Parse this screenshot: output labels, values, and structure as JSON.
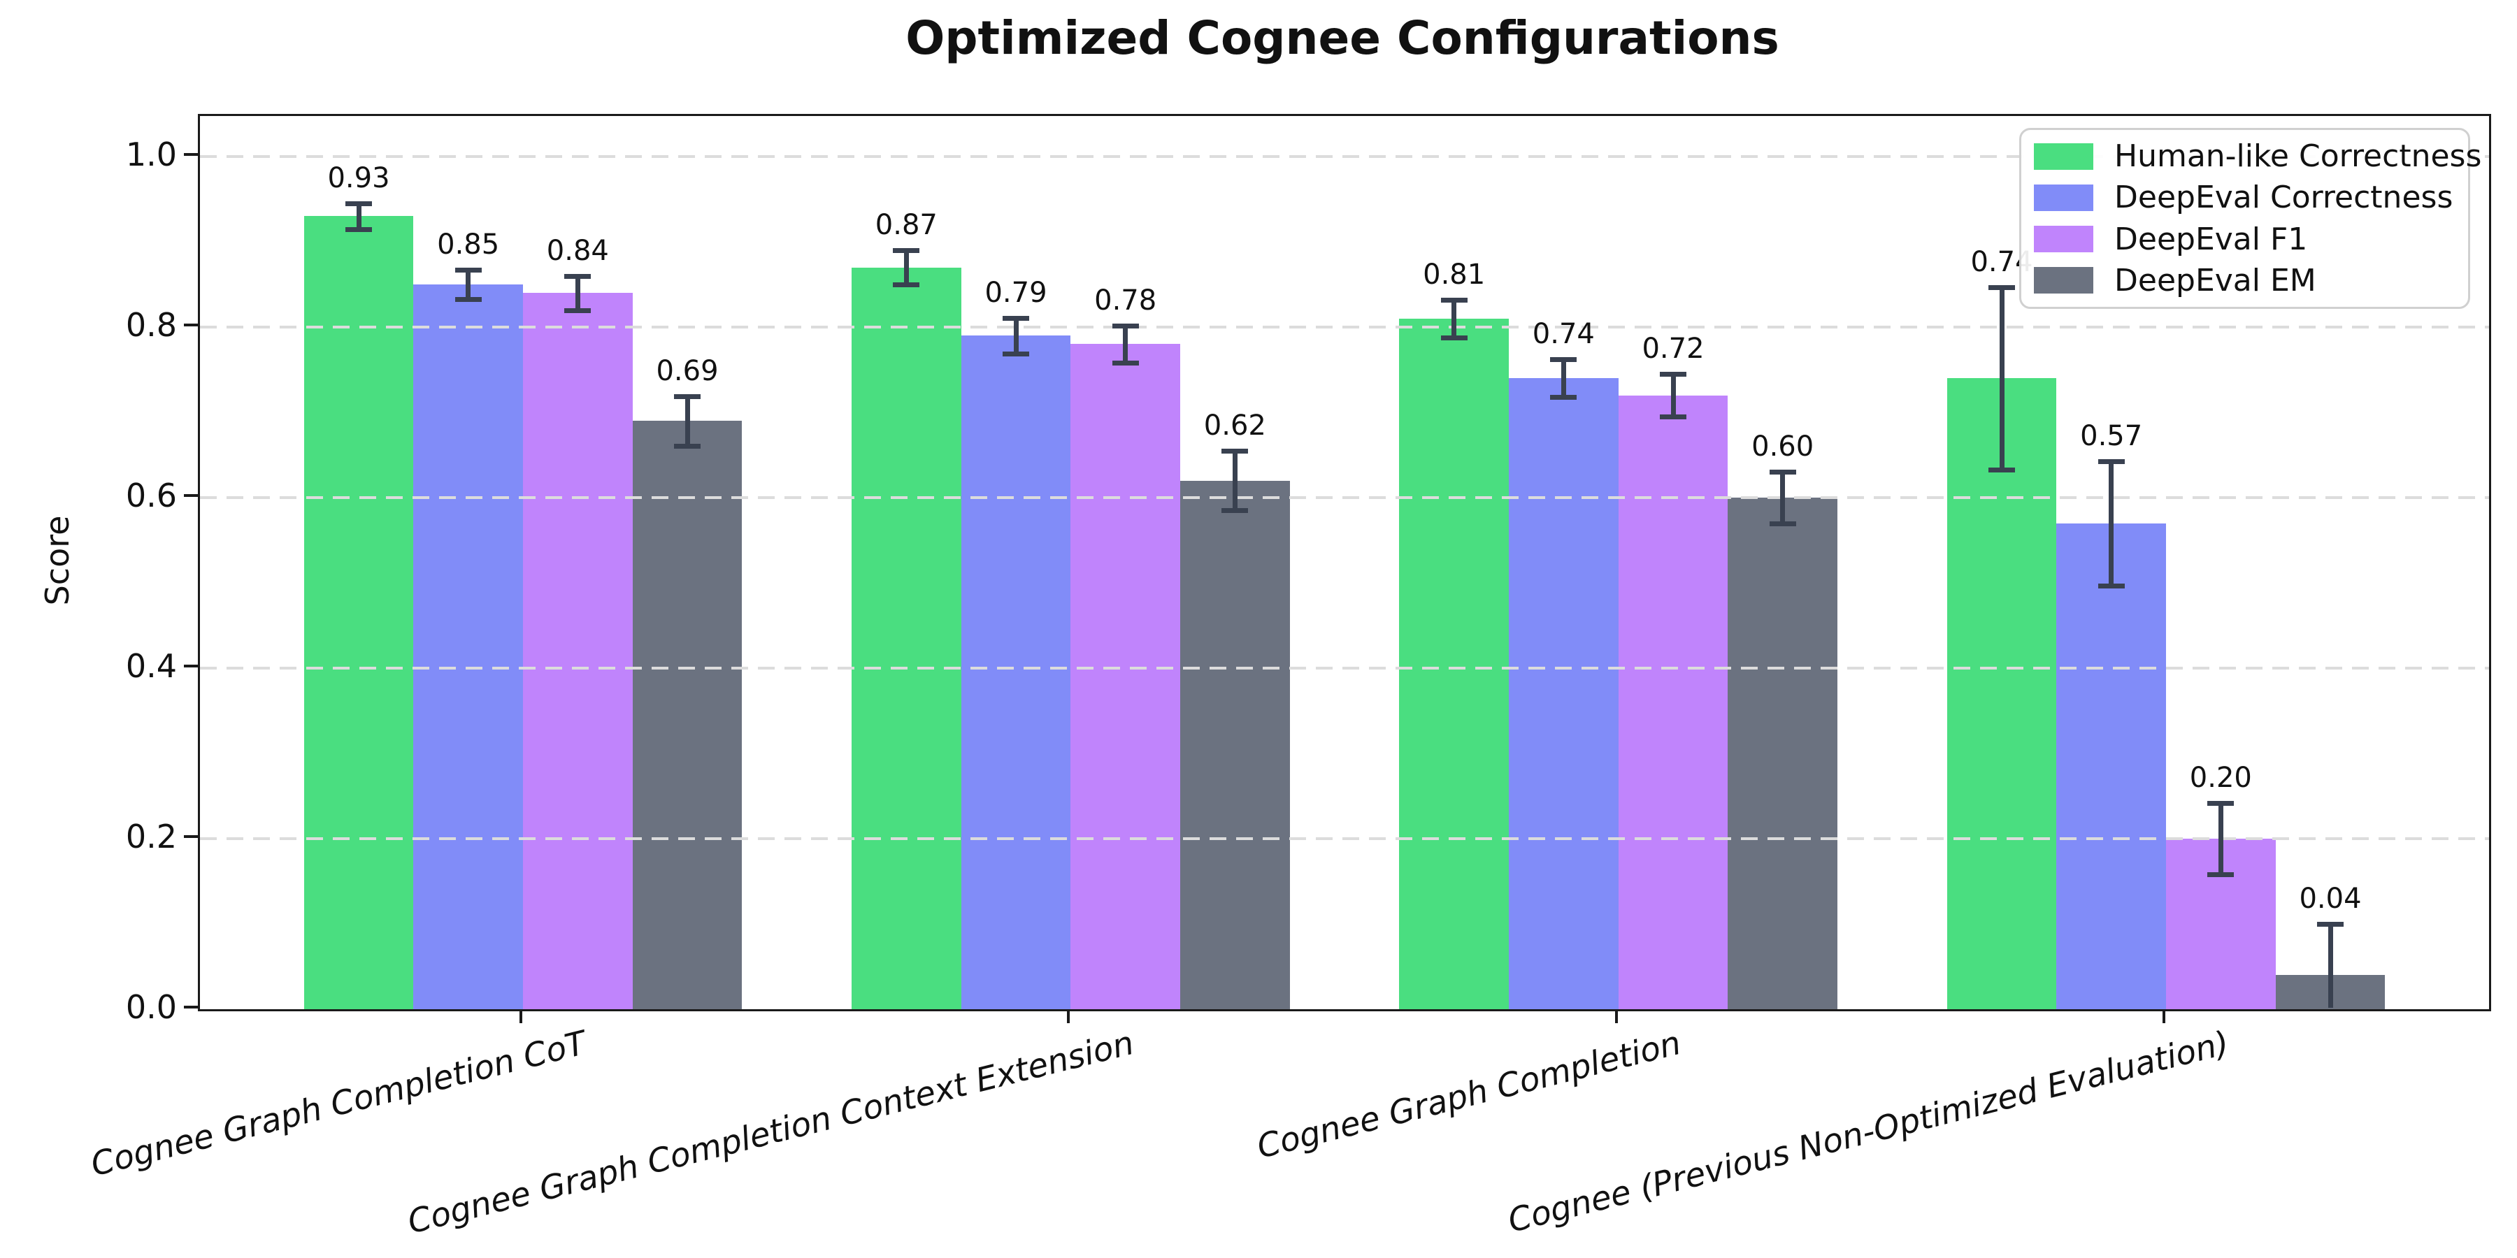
{
  "chart_data": {
    "type": "bar",
    "title": "Optimized Cognee Configurations",
    "ylabel": "Score",
    "xlabel": "",
    "categories": [
      "Cognee Graph Completion CoT",
      "Cognee Graph Completion Context Extension",
      "Cognee Graph Completion",
      "Cognee (Previous Non-Optimized Evaluation)"
    ],
    "series": [
      {
        "name": "Human-like Correctness",
        "color": "#4ade80",
        "values": [
          0.93,
          0.87,
          0.81,
          0.74
        ],
        "errors": [
          0.015,
          0.02,
          0.022,
          0.107
        ],
        "labels": [
          "0.93",
          "0.87",
          "0.81",
          "0.74"
        ]
      },
      {
        "name": "DeepEval Correctness",
        "color": "#818cf8",
        "values": [
          0.85,
          0.79,
          0.74,
          0.57
        ],
        "errors": [
          0.017,
          0.021,
          0.022,
          0.073
        ],
        "labels": [
          "0.85",
          "0.79",
          "0.74",
          "0.57"
        ]
      },
      {
        "name": "DeepEval F1",
        "color": "#c084fc",
        "values": [
          0.84,
          0.78,
          0.72,
          0.2
        ],
        "errors": [
          0.02,
          0.022,
          0.025,
          0.042
        ],
        "labels": [
          "0.84",
          "0.78",
          "0.72",
          "0.20"
        ]
      },
      {
        "name": "DeepEval EM",
        "color": "#6b7280",
        "values": [
          0.69,
          0.62,
          0.6,
          0.04
        ],
        "errors": [
          0.029,
          0.035,
          0.03,
          0.06
        ],
        "labels": [
          "0.69",
          "0.62",
          "0.60",
          "0.04"
        ]
      }
    ],
    "yticks": [
      0.0,
      0.2,
      0.4,
      0.6,
      0.8,
      1.0
    ],
    "ytick_labels": [
      "0.0",
      "0.2",
      "0.4",
      "0.6",
      "0.8",
      "1.0"
    ],
    "ylim": [
      0,
      1.048
    ],
    "grid": "horizontal-dashed-above-bars",
    "legend_position": "upper-right",
    "colors": {
      "error_bar": "#394150",
      "grid": "#dcdcdc",
      "axis": "#1a1a1a",
      "background": "#ffffff"
    }
  }
}
